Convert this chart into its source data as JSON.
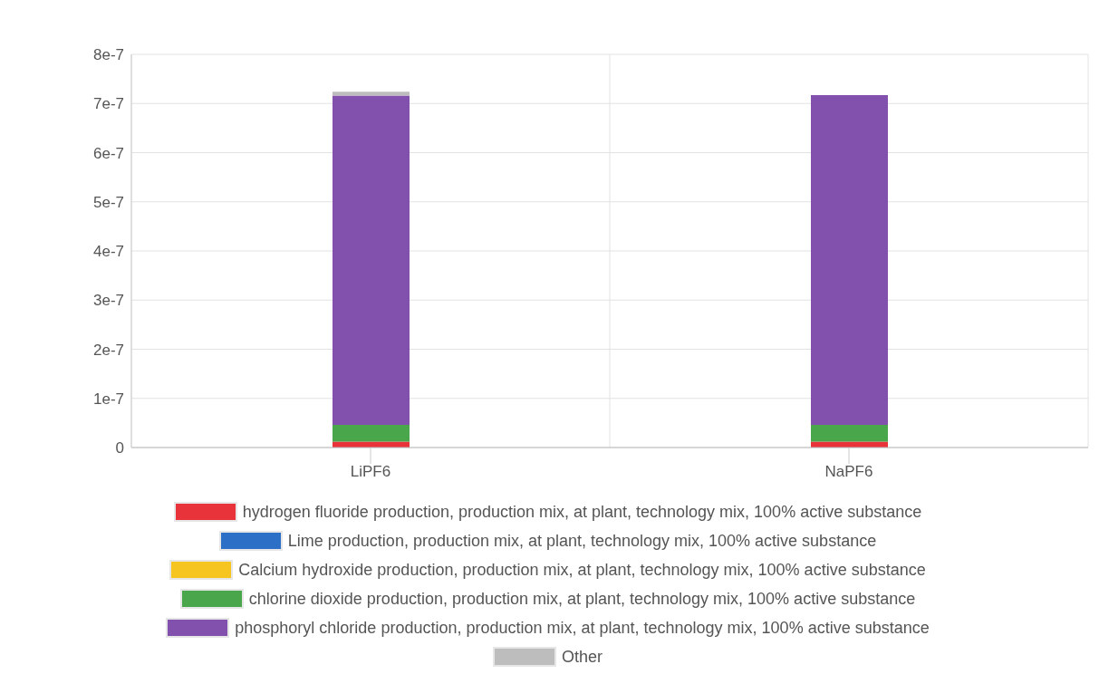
{
  "chart_data": {
    "type": "bar",
    "stacked": true,
    "categories": [
      "LiPF6",
      "NaPF6"
    ],
    "series": [
      {
        "name": "hydrogen fluoride production, production mix, at plant, technology mix, 100% active substance",
        "color": "#e8333a",
        "values": [
          1.2e-08,
          1.2e-08
        ]
      },
      {
        "name": "Lime production, production mix, at plant, technology mix, 100% active substance",
        "color": "#2b6fc7",
        "values": [
          0,
          0
        ]
      },
      {
        "name": "Calcium hydroxide production, production mix, at plant, technology mix, 100% active substance",
        "color": "#f7c520",
        "values": [
          0,
          0
        ]
      },
      {
        "name": "chlorine dioxide production, production mix, at plant, technology mix, 100% active substance",
        "color": "#4aa64a",
        "values": [
          3.4e-08,
          3.4e-08
        ]
      },
      {
        "name": "phosphoryl chloride production, production mix, at plant, technology mix, 100% active substance",
        "color": "#8250ad",
        "values": [
          6.7e-07,
          6.71e-07
        ]
      },
      {
        "name": "Other",
        "color": "#bdbdbd",
        "values": [
          8e-09,
          0
        ]
      }
    ],
    "ylim": [
      0,
      8e-07
    ],
    "yticks": [
      0,
      {
        "value": 1e-07,
        "label": "1e-7"
      },
      {
        "value": 2e-07,
        "label": "2e-7"
      },
      {
        "value": 3e-07,
        "label": "3e-7"
      },
      {
        "value": 4e-07,
        "label": "4e-7"
      },
      {
        "value": 5e-07,
        "label": "5e-7"
      },
      {
        "value": 6e-07,
        "label": "6e-7"
      },
      {
        "value": 7e-07,
        "label": "7e-7"
      },
      {
        "value": 8e-07,
        "label": "8e-7"
      }
    ],
    "grid": true,
    "legend": "bottom"
  }
}
